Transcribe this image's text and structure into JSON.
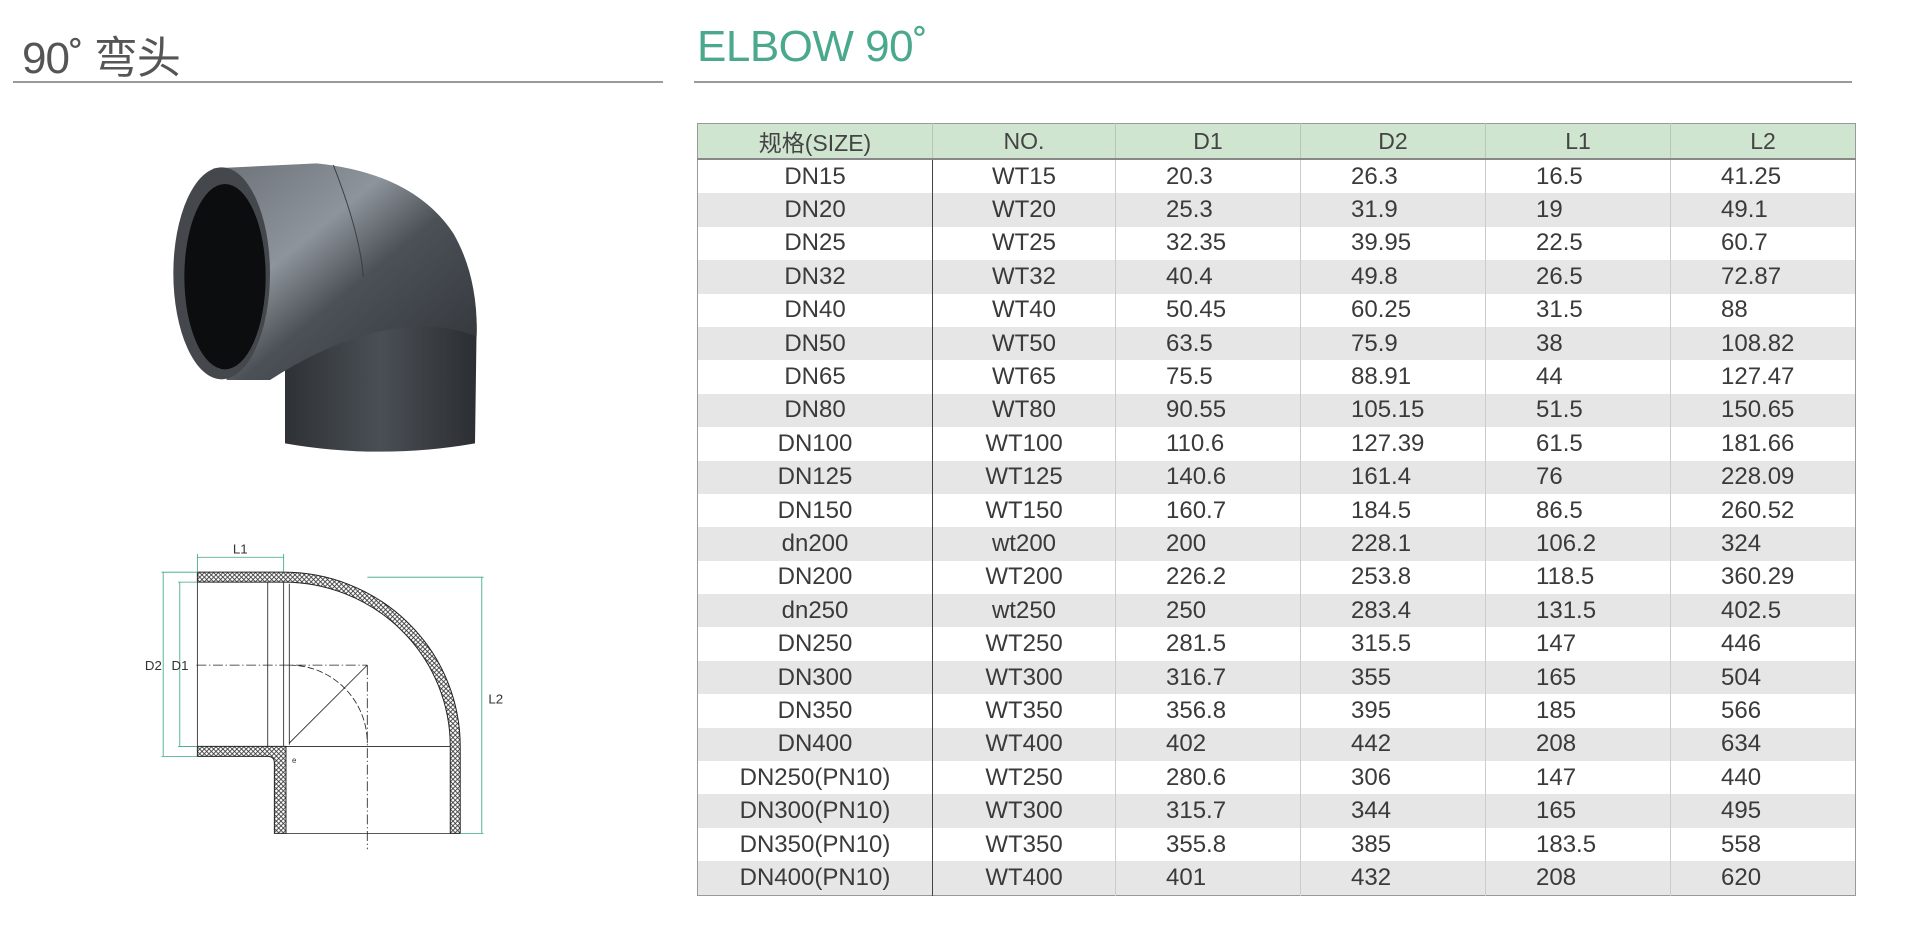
{
  "header": {
    "title_cn": "90˚ 弯头",
    "title_en": "ELBOW 90˚"
  },
  "colors": {
    "title_en": "#4aa88c",
    "table_header_bg": "#cfe5cf",
    "row_alt_bg": "#e6e6e6",
    "dimension_lines": "#3aa58a"
  },
  "diagram": {
    "labels": {
      "l1": "L1",
      "l2": "L2",
      "d2": "D2",
      "d1": "D1",
      "e": "e"
    }
  },
  "table": {
    "columns": [
      "规格(SIZE)",
      "NO.",
      "D1",
      "D2",
      "L1",
      "L2"
    ],
    "rows": [
      [
        "DN15",
        "WT15",
        "20.3",
        "26.3",
        "16.5",
        "41.25"
      ],
      [
        "DN20",
        "WT20",
        "25.3",
        "31.9",
        "19",
        "49.1"
      ],
      [
        "DN25",
        "WT25",
        "32.35",
        "39.95",
        "22.5",
        "60.7"
      ],
      [
        "DN32",
        "WT32",
        "40.4",
        "49.8",
        "26.5",
        "72.87"
      ],
      [
        "DN40",
        "WT40",
        "50.45",
        "60.25",
        "31.5",
        "88"
      ],
      [
        "DN50",
        "WT50",
        "63.5",
        "75.9",
        "38",
        "108.82"
      ],
      [
        "DN65",
        "WT65",
        "75.5",
        "88.91",
        "44",
        "127.47"
      ],
      [
        "DN80",
        "WT80",
        "90.55",
        "105.15",
        "51.5",
        "150.65"
      ],
      [
        "DN100",
        "WT100",
        "110.6",
        "127.39",
        "61.5",
        "181.66"
      ],
      [
        "DN125",
        "WT125",
        "140.6",
        "161.4",
        "76",
        "228.09"
      ],
      [
        "DN150",
        "WT150",
        "160.7",
        "184.5",
        "86.5",
        "260.52"
      ],
      [
        "dn200",
        "wt200",
        "200",
        "228.1",
        "106.2",
        "324"
      ],
      [
        "DN200",
        "WT200",
        "226.2",
        "253.8",
        "118.5",
        "360.29"
      ],
      [
        "dn250",
        "wt250",
        "250",
        "283.4",
        "131.5",
        "402.5"
      ],
      [
        "DN250",
        "WT250",
        "281.5",
        "315.5",
        "147",
        "446"
      ],
      [
        "DN300",
        "WT300",
        "316.7",
        "355",
        "165",
        "504"
      ],
      [
        "DN350",
        "WT350",
        "356.8",
        "395",
        "185",
        "566"
      ],
      [
        "DN400",
        "WT400",
        "402",
        "442",
        "208",
        "634"
      ],
      [
        "DN250(PN10)",
        "WT250",
        "280.6",
        "306",
        "147",
        "440"
      ],
      [
        "DN300(PN10)",
        "WT300",
        "315.7",
        "344",
        "165",
        "495"
      ],
      [
        "DN350(PN10)",
        "WT350",
        "355.8",
        "385",
        "183.5",
        "558"
      ],
      [
        "DN400(PN10)",
        "WT400",
        "401",
        "432",
        "208",
        "620"
      ]
    ]
  }
}
